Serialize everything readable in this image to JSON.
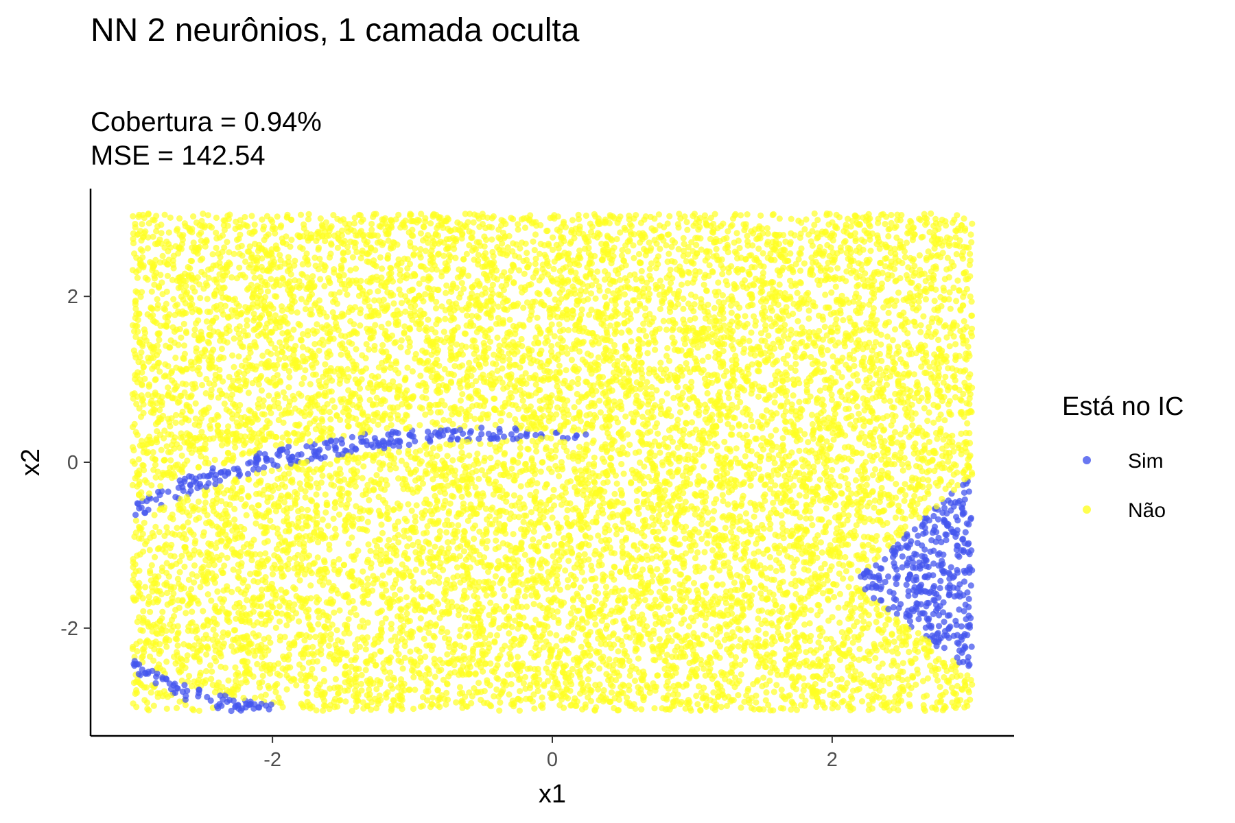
{
  "chart_data": {
    "type": "scatter",
    "title": "NN 2 neurônios, 1 camada oculta",
    "subtitle_lines": [
      "Cobertura = 0.94%",
      "MSE = 142.54"
    ],
    "xlabel": "x1",
    "ylabel": "x2",
    "xlim": [
      -3.3,
      3.3
    ],
    "ylim": [
      -3.3,
      3.3
    ],
    "x_ticks": [
      -2,
      0,
      2
    ],
    "y_ticks": [
      -2,
      0,
      2
    ],
    "x_tick_labels": [
      "-2",
      "0",
      "2"
    ],
    "y_tick_labels": [
      "-2",
      "0",
      "2"
    ],
    "grid": false,
    "legend": {
      "title": "Está no IC",
      "position": "right",
      "entries": [
        {
          "label": "Sim",
          "color": "#4455ee"
        },
        {
          "label": "Não",
          "color": "#ffff22"
        }
      ]
    },
    "series": [
      {
        "name": "Não",
        "color": "#ffff22",
        "distribution": "uniform over x1 in [-3, 3], x2 in [-3, 3], excluding the Sim regions",
        "approx_point_count": 12000
      },
      {
        "name": "Sim",
        "color": "#4455ee",
        "regions": [
          {
            "shape": "arc",
            "points": [
              [
                -3.0,
                -0.6
              ],
              [
                -2.5,
                -0.2
              ],
              [
                -2.0,
                0.05
              ],
              [
                -1.5,
                0.2
              ],
              [
                -1.0,
                0.3
              ],
              [
                -0.5,
                0.35
              ],
              [
                0.0,
                0.33
              ],
              [
                0.35,
                0.3
              ]
            ]
          },
          {
            "shape": "triangle",
            "points": [
              [
                2.15,
                -1.45
              ],
              [
                3.0,
                -0.15
              ],
              [
                3.0,
                -2.55
              ]
            ]
          },
          {
            "shape": "corner-band",
            "points": [
              [
                -3.0,
                -2.45
              ],
              [
                -2.6,
                -2.8
              ],
              [
                -2.2,
                -2.95
              ],
              [
                -1.95,
                -3.0
              ]
            ]
          }
        ]
      }
    ]
  }
}
